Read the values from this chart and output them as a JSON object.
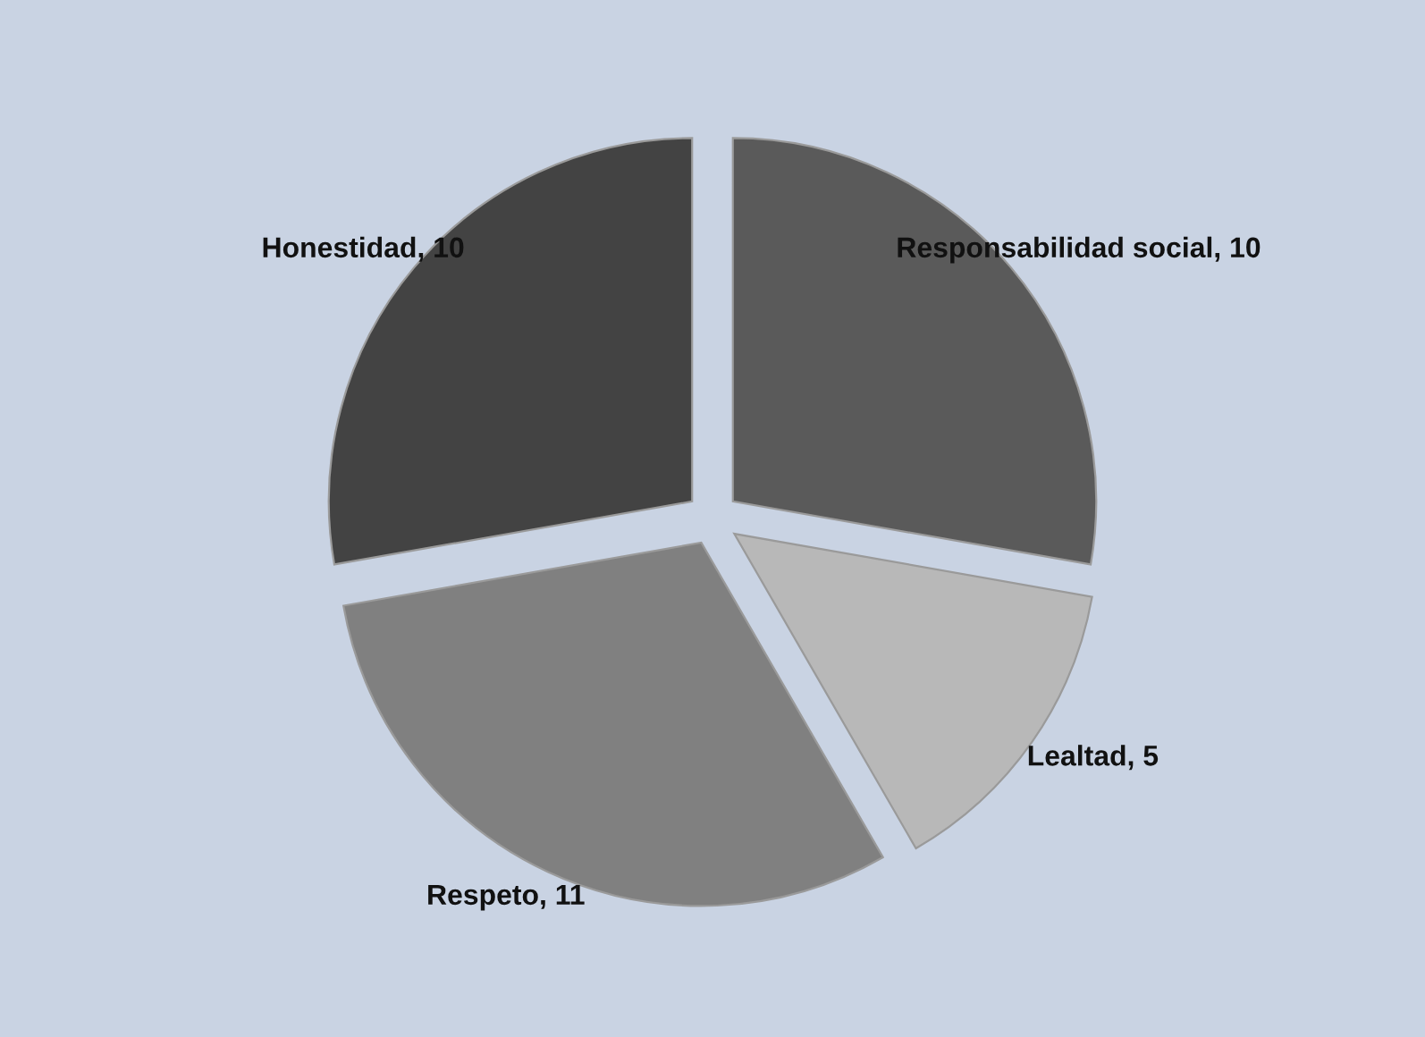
{
  "chart_data": {
    "type": "pie",
    "categories": [
      "Responsabilidad social",
      "Lealtad",
      "Respeto",
      "Honestidad"
    ],
    "values": [
      10,
      5,
      11,
      10
    ],
    "colors": [
      "#5a5a5a",
      "#b8b8b8",
      "#808080",
      "#434343"
    ],
    "value_labels": [
      ", 10",
      ", 5",
      ", 11",
      ", 10"
    ],
    "legend": false
  }
}
